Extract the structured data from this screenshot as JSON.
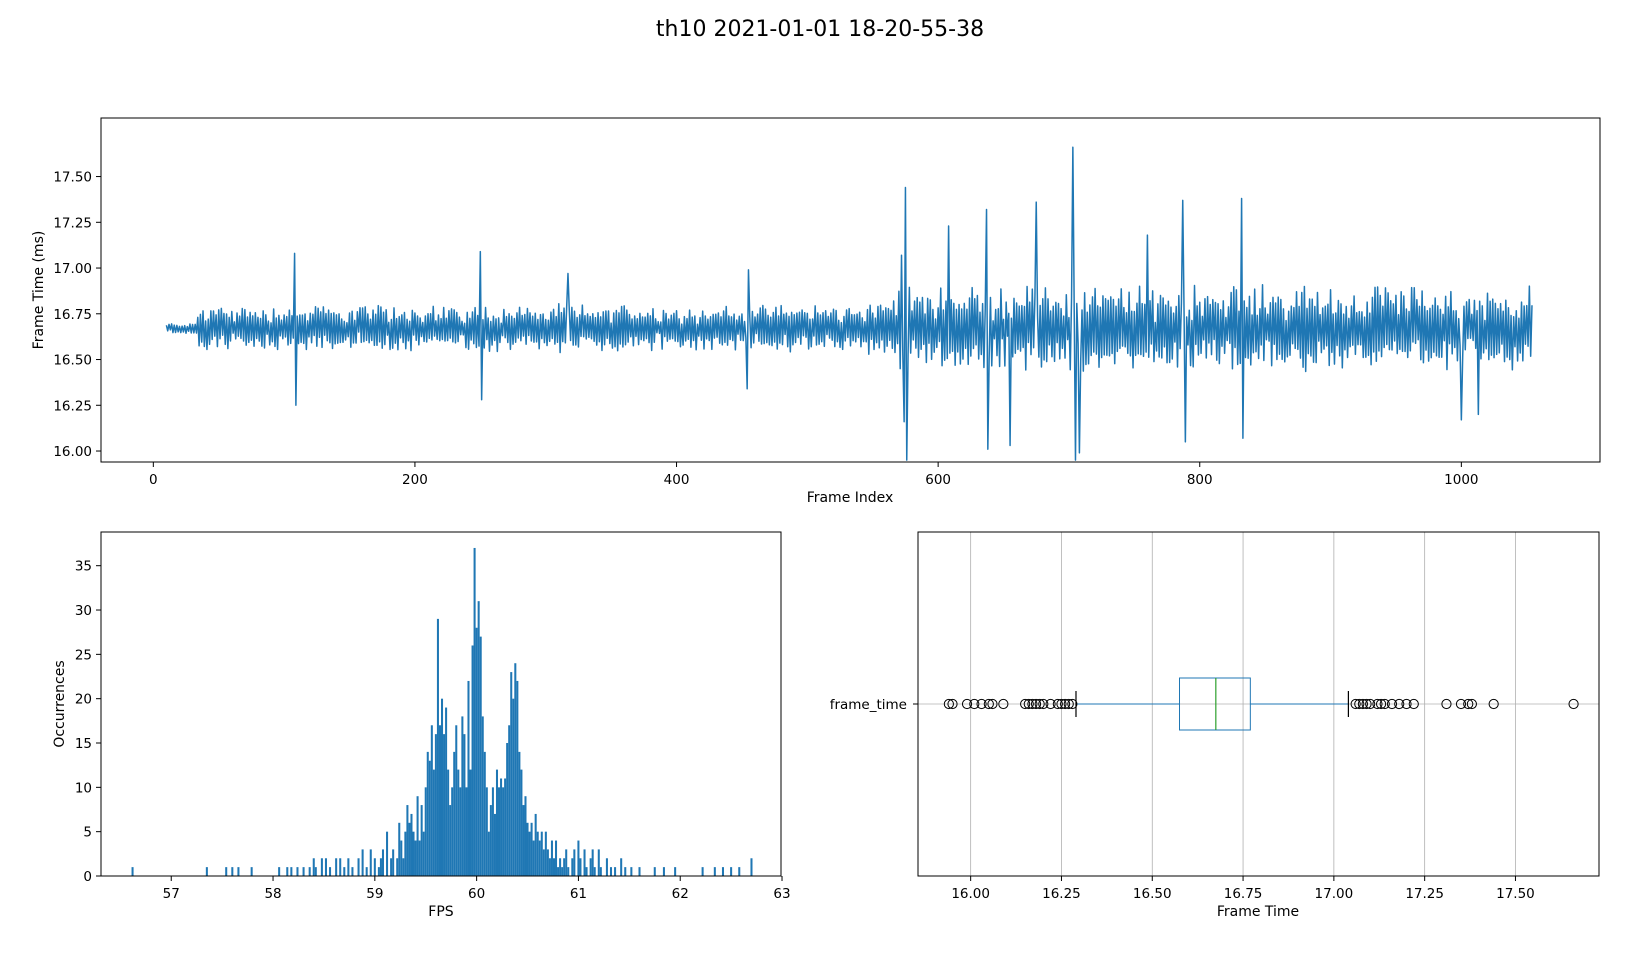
{
  "figure": {
    "title": "th10 2021-01-01 18-20-55-38"
  },
  "colors": {
    "line": "#1f77b4",
    "bar": "#1f77b4",
    "box": "#1f77b4",
    "median": "#2ca02c",
    "grid": "#b0b0b0",
    "axis": "#000000"
  },
  "chart_data": [
    {
      "type": "line",
      "xlabel": "Frame Index",
      "ylabel": "Frame Time (ms)",
      "xlim": [
        -40,
        1106
      ],
      "ylim": [
        15.94,
        17.82
      ],
      "xticks": [
        0,
        200,
        400,
        600,
        800,
        1000
      ],
      "yticks": [
        16.0,
        16.25,
        16.5,
        16.75,
        17.0,
        17.25,
        17.5
      ],
      "ytick_labels": [
        "16.00",
        "16.25",
        "16.50",
        "16.75",
        "17.00",
        "17.25",
        "17.50"
      ],
      "x_start": 10,
      "x_end": 1054,
      "baseline": 16.67,
      "spikes": [
        {
          "x": 108,
          "y": 17.08
        },
        {
          "x": 109,
          "y": 16.25
        },
        {
          "x": 250,
          "y": 17.09
        },
        {
          "x": 251,
          "y": 16.28
        },
        {
          "x": 317,
          "y": 16.97
        },
        {
          "x": 454,
          "y": 16.34
        },
        {
          "x": 455,
          "y": 16.99
        },
        {
          "x": 571,
          "y": 16.45
        },
        {
          "x": 572,
          "y": 17.07
        },
        {
          "x": 574,
          "y": 16.16
        },
        {
          "x": 575,
          "y": 17.44
        },
        {
          "x": 576,
          "y": 15.95
        },
        {
          "x": 608,
          "y": 17.23
        },
        {
          "x": 637,
          "y": 17.32
        },
        {
          "x": 638,
          "y": 16.01
        },
        {
          "x": 655,
          "y": 16.03
        },
        {
          "x": 675,
          "y": 17.36
        },
        {
          "x": 703,
          "y": 17.66
        },
        {
          "x": 705,
          "y": 15.95
        },
        {
          "x": 708,
          "y": 15.99
        },
        {
          "x": 760,
          "y": 17.18
        },
        {
          "x": 787,
          "y": 17.37
        },
        {
          "x": 789,
          "y": 16.05
        },
        {
          "x": 832,
          "y": 17.38
        },
        {
          "x": 833,
          "y": 16.07
        },
        {
          "x": 1000,
          "y": 16.17
        },
        {
          "x": 1013,
          "y": 16.2
        }
      ]
    },
    {
      "type": "bar",
      "xlabel": "FPS",
      "ylabel": "Occurrences",
      "xlim": [
        56.31,
        62.99
      ],
      "ylim": [
        0,
        38.8
      ],
      "xticks": [
        57,
        58,
        59,
        60,
        61,
        62,
        63
      ],
      "yticks": [
        0,
        5,
        10,
        15,
        20,
        25,
        30,
        35
      ],
      "bin_width": 0.02,
      "bins": [
        [
          56.62,
          1
        ],
        [
          57.35,
          1
        ],
        [
          57.54,
          1
        ],
        [
          57.6,
          1
        ],
        [
          57.66,
          1
        ],
        [
          57.79,
          1
        ],
        [
          58.06,
          1
        ],
        [
          58.14,
          1
        ],
        [
          58.18,
          1
        ],
        [
          58.24,
          1
        ],
        [
          58.3,
          1
        ],
        [
          58.36,
          1
        ],
        [
          58.4,
          2
        ],
        [
          58.42,
          1
        ],
        [
          58.48,
          2
        ],
        [
          58.52,
          2
        ],
        [
          58.56,
          1
        ],
        [
          58.62,
          2
        ],
        [
          58.66,
          2
        ],
        [
          58.7,
          1
        ],
        [
          58.74,
          2
        ],
        [
          58.78,
          1
        ],
        [
          58.84,
          2
        ],
        [
          58.88,
          3
        ],
        [
          58.92,
          1
        ],
        [
          58.96,
          3
        ],
        [
          59.0,
          2
        ],
        [
          59.04,
          1
        ],
        [
          59.06,
          2
        ],
        [
          59.08,
          3
        ],
        [
          59.12,
          5
        ],
        [
          59.16,
          2
        ],
        [
          59.18,
          3
        ],
        [
          59.22,
          2
        ],
        [
          59.24,
          6
        ],
        [
          59.26,
          4
        ],
        [
          59.28,
          2
        ],
        [
          59.3,
          5
        ],
        [
          59.32,
          8
        ],
        [
          59.34,
          6
        ],
        [
          59.36,
          7
        ],
        [
          59.38,
          5
        ],
        [
          59.4,
          4
        ],
        [
          59.42,
          9
        ],
        [
          59.44,
          4
        ],
        [
          59.46,
          8
        ],
        [
          59.48,
          5
        ],
        [
          59.5,
          10
        ],
        [
          59.52,
          14
        ],
        [
          59.54,
          13
        ],
        [
          59.56,
          17
        ],
        [
          59.58,
          12
        ],
        [
          59.6,
          16
        ],
        [
          59.62,
          29
        ],
        [
          59.64,
          17
        ],
        [
          59.66,
          20
        ],
        [
          59.68,
          16
        ],
        [
          59.7,
          19
        ],
        [
          59.72,
          12
        ],
        [
          59.74,
          8
        ],
        [
          59.76,
          10
        ],
        [
          59.78,
          14
        ],
        [
          59.8,
          17
        ],
        [
          59.82,
          12
        ],
        [
          59.84,
          10
        ],
        [
          59.86,
          18
        ],
        [
          59.88,
          16
        ],
        [
          59.9,
          10
        ],
        [
          59.92,
          22
        ],
        [
          59.94,
          12
        ],
        [
          59.96,
          26
        ],
        [
          59.98,
          37
        ],
        [
          60.0,
          28
        ],
        [
          60.02,
          31
        ],
        [
          60.04,
          27
        ],
        [
          60.06,
          18
        ],
        [
          60.08,
          14
        ],
        [
          60.1,
          10
        ],
        [
          60.12,
          5
        ],
        [
          60.14,
          8
        ],
        [
          60.16,
          10
        ],
        [
          60.18,
          7
        ],
        [
          60.2,
          12
        ],
        [
          60.22,
          10
        ],
        [
          60.24,
          11
        ],
        [
          60.26,
          10
        ],
        [
          60.28,
          11
        ],
        [
          60.3,
          15
        ],
        [
          60.32,
          17
        ],
        [
          60.34,
          23
        ],
        [
          60.36,
          20
        ],
        [
          60.38,
          24
        ],
        [
          60.4,
          22
        ],
        [
          60.42,
          14
        ],
        [
          60.44,
          12
        ],
        [
          60.46,
          8
        ],
        [
          60.48,
          9
        ],
        [
          60.5,
          6
        ],
        [
          60.52,
          5
        ],
        [
          60.54,
          6
        ],
        [
          60.56,
          4
        ],
        [
          60.58,
          7
        ],
        [
          60.6,
          5
        ],
        [
          60.62,
          4
        ],
        [
          60.64,
          5
        ],
        [
          60.66,
          3
        ],
        [
          60.68,
          5
        ],
        [
          60.7,
          3
        ],
        [
          60.72,
          2
        ],
        [
          60.74,
          4
        ],
        [
          60.76,
          2
        ],
        [
          60.78,
          4
        ],
        [
          60.8,
          1
        ],
        [
          60.82,
          2
        ],
        [
          60.84,
          1
        ],
        [
          60.86,
          2
        ],
        [
          60.88,
          3
        ],
        [
          60.9,
          1
        ],
        [
          60.94,
          2
        ],
        [
          60.96,
          3
        ],
        [
          61.0,
          4
        ],
        [
          61.02,
          2
        ],
        [
          61.06,
          3
        ],
        [
          61.08,
          1
        ],
        [
          61.12,
          2
        ],
        [
          61.14,
          3
        ],
        [
          61.16,
          1
        ],
        [
          61.2,
          3
        ],
        [
          61.22,
          1
        ],
        [
          61.28,
          2
        ],
        [
          61.32,
          1
        ],
        [
          61.36,
          1
        ],
        [
          61.42,
          2
        ],
        [
          61.46,
          1
        ],
        [
          61.52,
          1
        ],
        [
          61.6,
          1
        ],
        [
          61.75,
          1
        ],
        [
          61.84,
          1
        ],
        [
          61.95,
          1
        ],
        [
          62.22,
          1
        ],
        [
          62.34,
          1
        ],
        [
          62.42,
          1
        ],
        [
          62.5,
          1
        ],
        [
          62.58,
          1
        ],
        [
          62.7,
          2
        ]
      ]
    },
    {
      "type": "box",
      "xlabel": "Frame Time",
      "category": "frame_time",
      "xlim": [
        15.855,
        17.73
      ],
      "xticks": [
        16.0,
        16.25,
        16.5,
        16.75,
        17.0,
        17.25,
        17.5
      ],
      "xtick_labels": [
        "16.00",
        "16.25",
        "16.50",
        "16.75",
        "17.00",
        "17.25",
        "17.50"
      ],
      "grid": true,
      "whisker_low": 16.29,
      "q1": 16.575,
      "median": 16.675,
      "q3": 16.77,
      "whisker_high": 17.04,
      "outliers": [
        15.94,
        15.95,
        15.99,
        16.01,
        16.03,
        16.05,
        16.06,
        16.09,
        16.15,
        16.16,
        16.17,
        16.18,
        16.19,
        16.2,
        16.22,
        16.24,
        16.25,
        16.26,
        16.27,
        16.28,
        17.06,
        17.07,
        17.08,
        17.09,
        17.1,
        17.12,
        17.13,
        17.14,
        17.16,
        17.18,
        17.2,
        17.22,
        17.31,
        17.35,
        17.37,
        17.38,
        17.44,
        17.66
      ]
    }
  ]
}
